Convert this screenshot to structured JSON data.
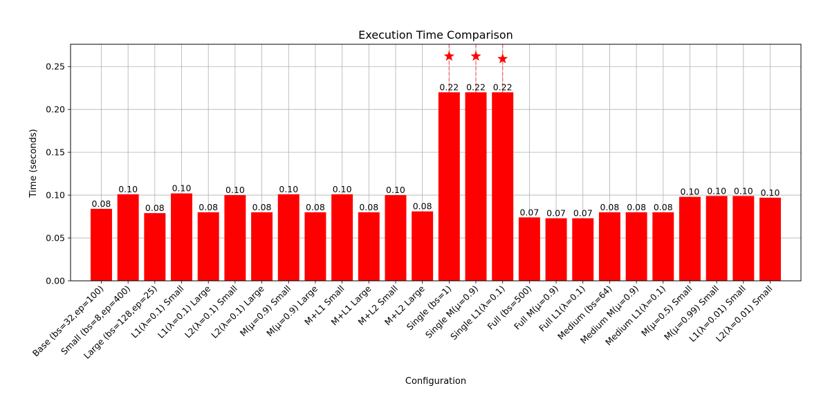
{
  "chart_data": {
    "type": "bar",
    "title": "Execution Time Comparison",
    "xlabel": "Configuration",
    "ylabel": "Time (seconds)",
    "categories": [
      "Base (bs=32,ep=100)",
      "Small (bs=8,ep=400)",
      "Large (bs=128,ep=25)",
      "L1(λ=0.1) Small",
      "L1(λ=0.1) Large",
      "L2(λ=0.1) Small",
      "L2(λ=0.1) Large",
      "M(μ=0.9) Small",
      "M(μ=0.9) Large",
      "M+L1 Small",
      "M+L1 Large",
      "M+L2 Small",
      "M+L2 Large",
      "Single (bs=1)",
      "Single M(μ=0.9)",
      "Single L1(λ=0.1)",
      "Full (bs=500)",
      "Full M(μ=0.9)",
      "Full L1(λ=0.1)",
      "Medium (bs=64)",
      "Medium M(μ=0.9)",
      "Medium L1(λ=0.1)",
      "M(μ=0.5) Small",
      "M(μ=0.99) Small",
      "L1(λ=0.01) Small",
      "L2(λ=0.01) Small"
    ],
    "values": [
      0.084,
      0.101,
      0.079,
      0.102,
      0.08,
      0.1,
      0.08,
      0.101,
      0.08,
      0.101,
      0.08,
      0.1,
      0.081,
      0.22,
      0.22,
      0.22,
      0.074,
      0.073,
      0.073,
      0.08,
      0.08,
      0.08,
      0.098,
      0.099,
      0.099,
      0.097
    ],
    "value_labels": [
      "0.08",
      "0.10",
      "0.08",
      "0.10",
      "0.08",
      "0.10",
      "0.08",
      "0.10",
      "0.08",
      "0.10",
      "0.08",
      "0.10",
      "0.08",
      "0.22",
      "0.22",
      "0.22",
      "0.07",
      "0.07",
      "0.07",
      "0.08",
      "0.08",
      "0.08",
      "0.10",
      "0.10",
      "0.10",
      "0.10"
    ],
    "highlights": [
      {
        "index": 13,
        "marker_value": 0.262
      },
      {
        "index": 14,
        "marker_value": 0.262
      },
      {
        "index": 15,
        "marker_value": 0.259
      }
    ],
    "ylim": [
      0,
      0.276
    ],
    "yticks": [
      0.0,
      0.05,
      0.1,
      0.15,
      0.2,
      0.25
    ],
    "ytick_labels": [
      "0.00",
      "0.05",
      "0.10",
      "0.15",
      "0.20",
      "0.25"
    ],
    "grid": true,
    "bar_color": "#ff0000",
    "marker_color": "#ff0000",
    "connector_color": "#ff5555",
    "grid_color": "#b0b0b0"
  }
}
